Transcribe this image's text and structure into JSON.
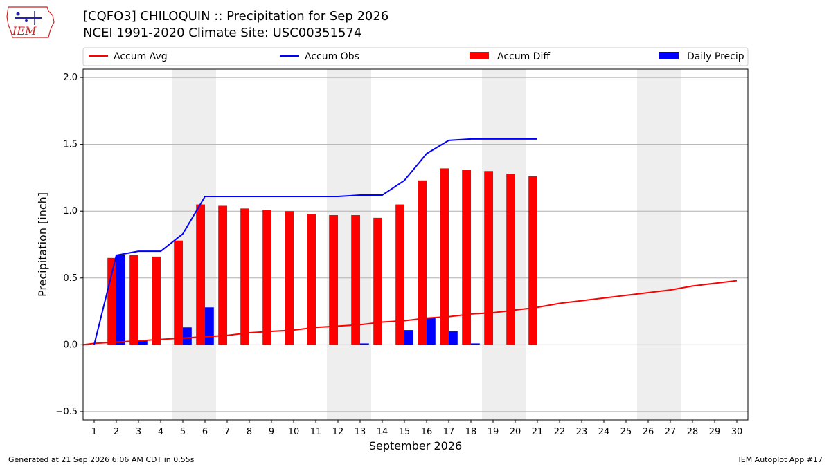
{
  "header": {
    "title_line1": "[CQFO3] CHILOQUIN :: Precipitation for Sep 2026",
    "title_line2": "NCEI 1991-2020 Climate Site: USC00351574"
  },
  "logo": {
    "text": "IEM"
  },
  "footer": {
    "generated": "Generated at 21 Sep 2026 6:06 AM CDT in 0.55s",
    "app": "IEM Autoplot App #17"
  },
  "colors": {
    "accum_avg": "#ff0000",
    "accum_obs": "#0000ff",
    "accum_diff": "#ff0000",
    "daily_precip": "#0000ff",
    "weekend_shade": "#eeeeee",
    "grid": "#b0b0b0"
  },
  "chart_data": {
    "type": "bar",
    "xlabel": "September 2026",
    "ylabel": "Precipitation [inch]",
    "ylim": [
      -0.5,
      2.0
    ],
    "yticks": [
      -0.5,
      0.0,
      0.5,
      1.0,
      1.5,
      2.0
    ],
    "ytick_labels": [
      "−0.5",
      "0.0",
      "0.5",
      "1.0",
      "1.5",
      "2.0"
    ],
    "xlim": [
      0.5,
      30.5
    ],
    "days": [
      1,
      2,
      3,
      4,
      5,
      6,
      7,
      8,
      9,
      10,
      11,
      12,
      13,
      14,
      15,
      16,
      17,
      18,
      19,
      20,
      21,
      22,
      23,
      24,
      25,
      26,
      27,
      28,
      29,
      30
    ],
    "weekend_days": [
      5,
      6,
      12,
      13,
      19,
      20,
      26,
      27
    ],
    "grid": "horizontal",
    "legend": {
      "placement": "top",
      "entries": [
        {
          "label": "Accum Avg",
          "kind": "line",
          "color": "#ff0000"
        },
        {
          "label": "Accum Obs",
          "kind": "line",
          "color": "#0000ff"
        },
        {
          "label": "Accum Diff",
          "kind": "bar",
          "color": "#ff0000"
        },
        {
          "label": "Daily Precip",
          "kind": "bar",
          "color": "#0000ff"
        }
      ]
    },
    "series": [
      {
        "name": "Accum Avg",
        "kind": "line",
        "x": [
          0.5,
          1,
          2,
          3,
          4,
          5,
          6,
          7,
          8,
          9,
          10,
          11,
          12,
          13,
          14,
          15,
          16,
          17,
          18,
          19,
          20,
          21,
          22,
          23,
          24,
          25,
          26,
          27,
          28,
          29,
          30
        ],
        "values": [
          0.0,
          0.01,
          0.02,
          0.03,
          0.04,
          0.05,
          0.06,
          0.07,
          0.09,
          0.1,
          0.11,
          0.13,
          0.14,
          0.15,
          0.17,
          0.18,
          0.2,
          0.21,
          0.23,
          0.24,
          0.26,
          0.28,
          0.31,
          0.33,
          0.35,
          0.37,
          0.39,
          0.41,
          0.44,
          0.46,
          0.48
        ]
      },
      {
        "name": "Accum Obs",
        "kind": "line",
        "x": [
          1,
          2,
          3,
          4,
          5,
          6,
          7,
          8,
          9,
          10,
          11,
          12,
          13,
          14,
          15,
          16,
          17,
          18,
          19,
          20,
          21
        ],
        "values": [
          0.0,
          0.67,
          0.7,
          0.7,
          0.83,
          1.11,
          1.11,
          1.11,
          1.11,
          1.11,
          1.11,
          1.11,
          1.12,
          1.12,
          1.23,
          1.43,
          1.53,
          1.54,
          1.54,
          1.54,
          1.54
        ]
      },
      {
        "name": "Accum Diff",
        "kind": "bar",
        "x": [
          2,
          3,
          4,
          5,
          6,
          7,
          8,
          9,
          10,
          11,
          12,
          13,
          14,
          15,
          16,
          17,
          18,
          19,
          20,
          21
        ],
        "values": [
          0.65,
          0.67,
          0.66,
          0.78,
          1.05,
          1.04,
          1.02,
          1.01,
          1.0,
          0.98,
          0.97,
          0.97,
          0.95,
          1.05,
          1.23,
          1.32,
          1.31,
          1.3,
          1.28,
          1.26
        ]
      },
      {
        "name": "Daily Precip",
        "kind": "bar",
        "x": [
          2,
          3,
          5,
          6,
          13,
          15,
          16,
          17,
          18
        ],
        "values": [
          0.67,
          0.03,
          0.13,
          0.28,
          0.01,
          0.11,
          0.2,
          0.1,
          0.01
        ]
      }
    ]
  }
}
